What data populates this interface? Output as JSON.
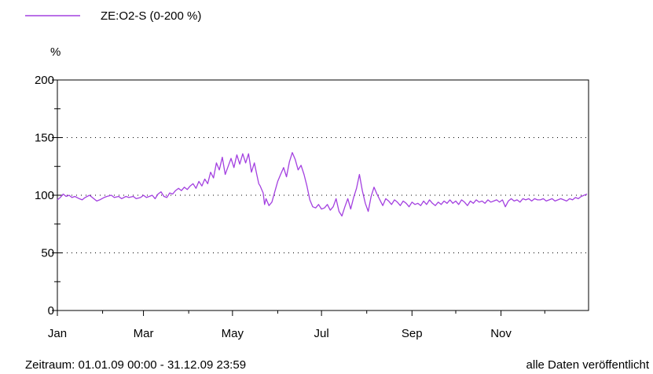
{
  "legend": {
    "label": "ZE:O2-S (0-200 %)",
    "color": "#a340e0"
  },
  "footer": {
    "period": "Zeitraum: 01.01.09 00:00 - 31.12.09 23:59",
    "status": "alle Daten veröffentlicht"
  },
  "chart_data": {
    "type": "line",
    "ylabel": "%",
    "ylim": [
      0,
      200
    ],
    "yticks": [
      0,
      50,
      100,
      150,
      200
    ],
    "xticks": [
      "Jan",
      "Mar",
      "May",
      "Jul",
      "Sep",
      "Nov"
    ],
    "grid": "dotted at 50, 100, 150",
    "series": [
      {
        "name": "ZE:O2-S (0-200 %)",
        "color": "#a340e0",
        "x_unit": "day of year 2009",
        "points": [
          [
            1,
            96
          ],
          [
            3,
            98
          ],
          [
            5,
            101
          ],
          [
            7,
            99
          ],
          [
            9,
            100
          ],
          [
            11,
            98
          ],
          [
            13,
            99
          ],
          [
            16,
            97
          ],
          [
            18,
            96
          ],
          [
            20,
            98
          ],
          [
            23,
            100
          ],
          [
            26,
            97
          ],
          [
            28,
            95
          ],
          [
            30,
            96
          ],
          [
            33,
            98
          ],
          [
            35,
            99
          ],
          [
            38,
            100
          ],
          [
            40,
            98
          ],
          [
            43,
            99
          ],
          [
            45,
            97
          ],
          [
            48,
            99
          ],
          [
            50,
            98
          ],
          [
            53,
            99
          ],
          [
            55,
            97
          ],
          [
            58,
            98
          ],
          [
            60,
            100
          ],
          [
            62,
            98
          ],
          [
            64,
            99
          ],
          [
            66,
            100
          ],
          [
            68,
            97
          ],
          [
            70,
            101
          ],
          [
            72,
            103
          ],
          [
            74,
            99
          ],
          [
            76,
            98
          ],
          [
            78,
            102
          ],
          [
            80,
            101
          ],
          [
            82,
            104
          ],
          [
            84,
            106
          ],
          [
            86,
            104
          ],
          [
            88,
            107
          ],
          [
            90,
            105
          ],
          [
            92,
            108
          ],
          [
            94,
            110
          ],
          [
            96,
            106
          ],
          [
            98,
            112
          ],
          [
            100,
            108
          ],
          [
            102,
            114
          ],
          [
            104,
            110
          ],
          [
            106,
            120
          ],
          [
            108,
            115
          ],
          [
            110,
            128
          ],
          [
            112,
            122
          ],
          [
            114,
            133
          ],
          [
            116,
            118
          ],
          [
            118,
            125
          ],
          [
            120,
            132
          ],
          [
            122,
            124
          ],
          [
            124,
            135
          ],
          [
            126,
            127
          ],
          [
            128,
            136
          ],
          [
            130,
            128
          ],
          [
            132,
            136
          ],
          [
            134,
            120
          ],
          [
            136,
            128
          ],
          [
            138,
            116
          ],
          [
            139,
            110
          ],
          [
            140,
            108
          ],
          [
            142,
            102
          ],
          [
            143,
            92
          ],
          [
            144,
            97
          ],
          [
            146,
            91
          ],
          [
            148,
            94
          ],
          [
            150,
            103
          ],
          [
            152,
            112
          ],
          [
            154,
            118
          ],
          [
            156,
            124
          ],
          [
            158,
            116
          ],
          [
            160,
            129
          ],
          [
            162,
            137
          ],
          [
            164,
            131
          ],
          [
            166,
            122
          ],
          [
            168,
            126
          ],
          [
            170,
            118
          ],
          [
            172,
            108
          ],
          [
            174,
            96
          ],
          [
            176,
            90
          ],
          [
            178,
            89
          ],
          [
            180,
            92
          ],
          [
            182,
            88
          ],
          [
            184,
            89
          ],
          [
            186,
            92
          ],
          [
            188,
            87
          ],
          [
            190,
            90
          ],
          [
            192,
            97
          ],
          [
            194,
            86
          ],
          [
            196,
            82
          ],
          [
            198,
            90
          ],
          [
            200,
            97
          ],
          [
            202,
            88
          ],
          [
            204,
            98
          ],
          [
            206,
            106
          ],
          [
            208,
            118
          ],
          [
            210,
            104
          ],
          [
            212,
            93
          ],
          [
            214,
            86
          ],
          [
            216,
            99
          ],
          [
            218,
            107
          ],
          [
            220,
            101
          ],
          [
            222,
            96
          ],
          [
            224,
            91
          ],
          [
            226,
            97
          ],
          [
            228,
            95
          ],
          [
            230,
            92
          ],
          [
            232,
            96
          ],
          [
            234,
            94
          ],
          [
            236,
            91
          ],
          [
            238,
            95
          ],
          [
            240,
            93
          ],
          [
            242,
            90
          ],
          [
            244,
            94
          ],
          [
            246,
            92
          ],
          [
            248,
            93
          ],
          [
            250,
            91
          ],
          [
            252,
            95
          ],
          [
            254,
            92
          ],
          [
            256,
            96
          ],
          [
            258,
            93
          ],
          [
            260,
            91
          ],
          [
            262,
            94
          ],
          [
            264,
            92
          ],
          [
            266,
            95
          ],
          [
            268,
            93
          ],
          [
            270,
            96
          ],
          [
            272,
            93
          ],
          [
            274,
            95
          ],
          [
            276,
            92
          ],
          [
            278,
            96
          ],
          [
            280,
            94
          ],
          [
            282,
            91
          ],
          [
            284,
            95
          ],
          [
            286,
            93
          ],
          [
            288,
            96
          ],
          [
            290,
            94
          ],
          [
            292,
            95
          ],
          [
            294,
            93
          ],
          [
            296,
            96
          ],
          [
            298,
            94
          ],
          [
            300,
            95
          ],
          [
            302,
            96
          ],
          [
            304,
            94
          ],
          [
            306,
            96
          ],
          [
            308,
            90
          ],
          [
            310,
            95
          ],
          [
            312,
            97
          ],
          [
            314,
            95
          ],
          [
            316,
            96
          ],
          [
            318,
            94
          ],
          [
            320,
            97
          ],
          [
            322,
            96
          ],
          [
            324,
            97
          ],
          [
            326,
            95
          ],
          [
            328,
            97
          ],
          [
            330,
            96
          ],
          [
            332,
            96
          ],
          [
            334,
            97
          ],
          [
            336,
            95
          ],
          [
            338,
            96
          ],
          [
            340,
            97
          ],
          [
            342,
            95
          ],
          [
            344,
            96
          ],
          [
            346,
            97
          ],
          [
            348,
            96
          ],
          [
            350,
            95
          ],
          [
            352,
            97
          ],
          [
            354,
            96
          ],
          [
            356,
            98
          ],
          [
            358,
            97
          ],
          [
            360,
            99
          ],
          [
            362,
            100
          ],
          [
            364,
            101
          ]
        ]
      }
    ]
  }
}
